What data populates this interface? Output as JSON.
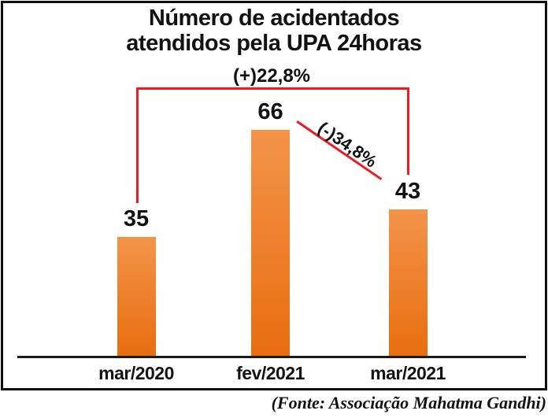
{
  "title": {
    "line1": "Número de acidentados",
    "line2": "atendidos pela UPA 24horas"
  },
  "source": "(Fonte: Associação Mahatma Gandhi)",
  "chart_data": {
    "type": "bar",
    "categories": [
      "mar/2020",
      "fev/2021",
      "mar/2021"
    ],
    "values": [
      35,
      66,
      43
    ],
    "title": "Número de acidentados atendidos pela UPA 24horas",
    "xlabel": "",
    "ylabel": "",
    "ylim": [
      0,
      70
    ],
    "grid": false,
    "legend": "none",
    "annotations": {
      "increase": "(+)22,8%",
      "decrease": "(-)34,8%"
    },
    "colors": {
      "bar_gradient_top": "#f3944a",
      "bar_gradient_bottom": "#e86d0e",
      "accent_red": "#ed1c24",
      "text": "#111111",
      "frame": "#0d0d0d"
    }
  }
}
